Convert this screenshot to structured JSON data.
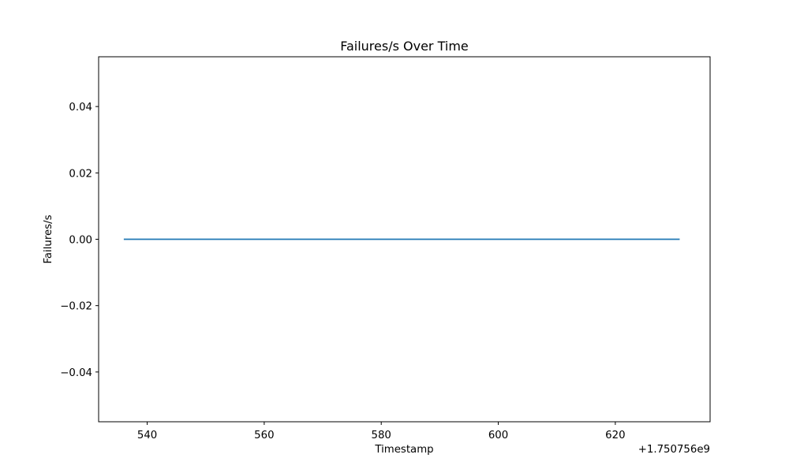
{
  "chart_data": {
    "type": "line",
    "title": "Failures/s Over Time",
    "xlabel": "Timestamp",
    "ylabel": "Failures/s",
    "x_offset_label": "+1.750756e9",
    "x_ticks": [
      540,
      560,
      580,
      600,
      620
    ],
    "x_tick_labels": [
      "540",
      "560",
      "580",
      "600",
      "620"
    ],
    "y_ticks": [
      -0.04,
      -0.02,
      0.0,
      0.02,
      0.04
    ],
    "y_tick_labels": [
      "−0.04",
      "−0.02",
      "0.00",
      "0.02",
      "0.04"
    ],
    "xlim": [
      531.7,
      636.2
    ],
    "ylim": [
      -0.055,
      0.055
    ],
    "grid": false,
    "series": [
      {
        "color": "#1f77b4",
        "x": [
          536,
          631
        ],
        "y": [
          0,
          0
        ]
      }
    ]
  }
}
